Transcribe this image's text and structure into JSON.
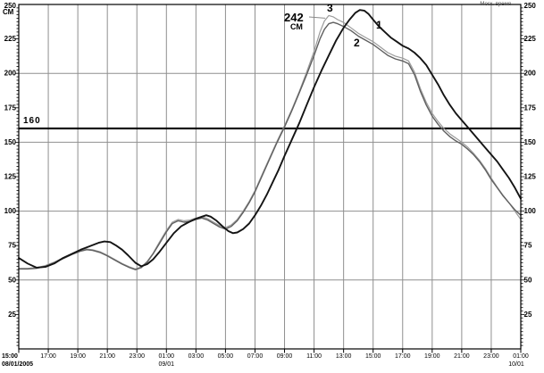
{
  "labels": {
    "units": "СМ",
    "threshold": "160",
    "peak_value": "242",
    "peak_units": "СМ",
    "curve1": "1",
    "curve2": "2",
    "cur3_comment": "curve id labels drawn near each line peak",
    "curve3": "3",
    "time_note": "Моск. время"
  },
  "colors": {
    "grid": "#8f8f8f",
    "axis": "#000000",
    "threshold_line": "#000000",
    "background": "#ffffff"
  },
  "chart_data": {
    "type": "line",
    "title": "",
    "ylabel": "СМ",
    "xlabel": "Моск. время",
    "ylim": [
      0,
      250
    ],
    "y_label_step": 25,
    "y_minor_step": 2.5,
    "y_gridlines": [
      50,
      100,
      150,
      200
    ],
    "threshold_level": 160,
    "grid": true,
    "legend_position": "none",
    "xlim_hours": [
      0,
      34
    ],
    "x_unit": "hours from 15:00 08/01/2005",
    "x_tick_hours": [
      0,
      2,
      4,
      6,
      8,
      10,
      12,
      14,
      16,
      18,
      20,
      22,
      24,
      26,
      28,
      30,
      32,
      34
    ],
    "x_tick_labels": [
      "15:00",
      "17:00",
      "19:00",
      "21:00",
      "23:00",
      "01:00",
      "03:00",
      "05:00",
      "07:00",
      "09:00",
      "11:00",
      "13:00",
      "15:00",
      "17:00",
      "19:00",
      "21:00",
      "23:00",
      "01:00"
    ],
    "date_labels": [
      {
        "hour": 0,
        "text": "08/01/2005",
        "bold": true,
        "anchor": "start"
      },
      {
        "hour": 10,
        "text": "09/01",
        "bold": false,
        "anchor": "middle"
      },
      {
        "hour": 34,
        "text": "10/01",
        "bold": false,
        "anchor": "middle"
      }
    ],
    "peak_annotation": {
      "series": "3",
      "value": 242,
      "units": "СМ",
      "at_hour": 21
    },
    "series": [
      {
        "name": "3",
        "color": "#9b9b9b",
        "width": 1.2,
        "points": [
          [
            0,
            58.5
          ],
          [
            0.6,
            58.5
          ],
          [
            1.2,
            59
          ],
          [
            1.8,
            60.5
          ],
          [
            2.4,
            63
          ],
          [
            3,
            66
          ],
          [
            3.6,
            69
          ],
          [
            4.2,
            71.5
          ],
          [
            4.6,
            72.5
          ],
          [
            5,
            72
          ],
          [
            5.5,
            70.5
          ],
          [
            6,
            68
          ],
          [
            6.5,
            65
          ],
          [
            7,
            62
          ],
          [
            7.5,
            59.5
          ],
          [
            7.9,
            58
          ],
          [
            8.3,
            59.5
          ],
          [
            8.7,
            63.5
          ],
          [
            9.1,
            69.5
          ],
          [
            9.5,
            77
          ],
          [
            10,
            86
          ],
          [
            10.4,
            92
          ],
          [
            10.8,
            94
          ],
          [
            11.2,
            93
          ],
          [
            11.6,
            93.5
          ],
          [
            12,
            95
          ],
          [
            12.4,
            96
          ],
          [
            12.8,
            94.5
          ],
          [
            13.2,
            92
          ],
          [
            13.6,
            89.5
          ],
          [
            14,
            88
          ],
          [
            14.4,
            90
          ],
          [
            14.8,
            94
          ],
          [
            15.2,
            100
          ],
          [
            15.6,
            107
          ],
          [
            16,
            115
          ],
          [
            16.5,
            127
          ],
          [
            17,
            139
          ],
          [
            17.5,
            151
          ],
          [
            18,
            162
          ],
          [
            18.5,
            174
          ],
          [
            19,
            187
          ],
          [
            19.5,
            201
          ],
          [
            20,
            216
          ],
          [
            20.4,
            230
          ],
          [
            20.7,
            238
          ],
          [
            21,
            242
          ],
          [
            21.3,
            241
          ],
          [
            21.6,
            239
          ],
          [
            22,
            237
          ],
          [
            22.5,
            233
          ],
          [
            23,
            229
          ],
          [
            23.5,
            226
          ],
          [
            24,
            223
          ],
          [
            24.5,
            219
          ],
          [
            25,
            215
          ],
          [
            25.5,
            212.5
          ],
          [
            26,
            211
          ],
          [
            26.4,
            209
          ],
          [
            26.8,
            201
          ],
          [
            27.2,
            189
          ],
          [
            27.6,
            179
          ],
          [
            28,
            171
          ],
          [
            28.4,
            165
          ],
          [
            28.8,
            160
          ],
          [
            29.2,
            156
          ],
          [
            29.6,
            153
          ],
          [
            30,
            150
          ],
          [
            30.4,
            146.5
          ],
          [
            30.8,
            142
          ],
          [
            31.2,
            137
          ],
          [
            31.6,
            131
          ],
          [
            32,
            124
          ],
          [
            32.4,
            117.5
          ],
          [
            32.8,
            111.5
          ],
          [
            33.2,
            106
          ],
          [
            33.6,
            100
          ],
          [
            34,
            94
          ]
        ]
      },
      {
        "name": "2",
        "color": "#5f5f5f",
        "width": 1.4,
        "points": [
          [
            0,
            58
          ],
          [
            0.6,
            58
          ],
          [
            1.2,
            58.5
          ],
          [
            1.8,
            60
          ],
          [
            2.4,
            62.5
          ],
          [
            3,
            65.5
          ],
          [
            3.6,
            68.5
          ],
          [
            4.2,
            71
          ],
          [
            4.6,
            72
          ],
          [
            5,
            71.5
          ],
          [
            5.5,
            70
          ],
          [
            6,
            67.5
          ],
          [
            6.5,
            64.5
          ],
          [
            7,
            61.5
          ],
          [
            7.5,
            59
          ],
          [
            7.9,
            57.5
          ],
          [
            8.3,
            59
          ],
          [
            8.7,
            63
          ],
          [
            9.1,
            69
          ],
          [
            9.5,
            76
          ],
          [
            10,
            85
          ],
          [
            10.4,
            91
          ],
          [
            10.8,
            93
          ],
          [
            11.2,
            92
          ],
          [
            11.6,
            92.5
          ],
          [
            12,
            94
          ],
          [
            12.4,
            95
          ],
          [
            12.8,
            93.5
          ],
          [
            13.2,
            91
          ],
          [
            13.6,
            88.5
          ],
          [
            14,
            87
          ],
          [
            14.4,
            89
          ],
          [
            14.8,
            93
          ],
          [
            15.2,
            99
          ],
          [
            15.6,
            106
          ],
          [
            16,
            114
          ],
          [
            16.5,
            126
          ],
          [
            17,
            138
          ],
          [
            17.5,
            150
          ],
          [
            18,
            161
          ],
          [
            18.5,
            173
          ],
          [
            19,
            186
          ],
          [
            19.5,
            199
          ],
          [
            20,
            213
          ],
          [
            20.4,
            225
          ],
          [
            20.7,
            232
          ],
          [
            21,
            236
          ],
          [
            21.3,
            237
          ],
          [
            21.6,
            236
          ],
          [
            22,
            234
          ],
          [
            22.5,
            231
          ],
          [
            23,
            227
          ],
          [
            23.5,
            224
          ],
          [
            24,
            221
          ],
          [
            24.5,
            217
          ],
          [
            25,
            213
          ],
          [
            25.5,
            210.5
          ],
          [
            26,
            209
          ],
          [
            26.4,
            207
          ],
          [
            26.8,
            199
          ],
          [
            27.2,
            187
          ],
          [
            27.6,
            177
          ],
          [
            28,
            169
          ],
          [
            28.4,
            163
          ],
          [
            28.8,
            158
          ],
          [
            29.2,
            154
          ],
          [
            29.6,
            151
          ],
          [
            30,
            148.5
          ],
          [
            30.4,
            145
          ],
          [
            30.8,
            141
          ],
          [
            31.2,
            136
          ],
          [
            31.6,
            130
          ],
          [
            32,
            123
          ],
          [
            32.4,
            117
          ],
          [
            32.8,
            111
          ],
          [
            33.2,
            106
          ],
          [
            33.6,
            101
          ],
          [
            34,
            97
          ]
        ]
      },
      {
        "name": "1",
        "color": "#141414",
        "width": 1.9,
        "points": [
          [
            0,
            66
          ],
          [
            0.6,
            62
          ],
          [
            1.2,
            59
          ],
          [
            1.8,
            59.5
          ],
          [
            2.4,
            62
          ],
          [
            3,
            66
          ],
          [
            3.6,
            69
          ],
          [
            4.2,
            72
          ],
          [
            4.8,
            74.5
          ],
          [
            5.4,
            77
          ],
          [
            5.8,
            78
          ],
          [
            6.2,
            77.5
          ],
          [
            6.6,
            75
          ],
          [
            7,
            72
          ],
          [
            7.4,
            68
          ],
          [
            7.9,
            62.5
          ],
          [
            8.3,
            60
          ],
          [
            8.7,
            61.5
          ],
          [
            9.1,
            65
          ],
          [
            9.5,
            70
          ],
          [
            10,
            77
          ],
          [
            10.5,
            84
          ],
          [
            11,
            89
          ],
          [
            11.5,
            92
          ],
          [
            12,
            94.5
          ],
          [
            12.4,
            96
          ],
          [
            12.7,
            97
          ],
          [
            13,
            96
          ],
          [
            13.4,
            93
          ],
          [
            13.8,
            89
          ],
          [
            14.2,
            85.5
          ],
          [
            14.5,
            84
          ],
          [
            14.8,
            84.5
          ],
          [
            15.2,
            87
          ],
          [
            15.6,
            91
          ],
          [
            16,
            97
          ],
          [
            16.4,
            104
          ],
          [
            16.8,
            112
          ],
          [
            17.2,
            121
          ],
          [
            17.6,
            130
          ],
          [
            18,
            140
          ],
          [
            18.5,
            152
          ],
          [
            19,
            164
          ],
          [
            19.5,
            177
          ],
          [
            20,
            190
          ],
          [
            20.5,
            202
          ],
          [
            21,
            213
          ],
          [
            21.5,
            224
          ],
          [
            22,
            233
          ],
          [
            22.4,
            239
          ],
          [
            22.8,
            244
          ],
          [
            23.1,
            246
          ],
          [
            23.4,
            245.5
          ],
          [
            23.7,
            243
          ],
          [
            24,
            239
          ],
          [
            24.4,
            234
          ],
          [
            24.8,
            230
          ],
          [
            25.2,
            226
          ],
          [
            25.6,
            223
          ],
          [
            26,
            220
          ],
          [
            26.4,
            218
          ],
          [
            26.8,
            215
          ],
          [
            27.2,
            211
          ],
          [
            27.6,
            206
          ],
          [
            28,
            199
          ],
          [
            28.4,
            192
          ],
          [
            28.8,
            184
          ],
          [
            29.2,
            177
          ],
          [
            29.6,
            171
          ],
          [
            30,
            166
          ],
          [
            30.4,
            161
          ],
          [
            30.8,
            156
          ],
          [
            31.2,
            151
          ],
          [
            31.6,
            146
          ],
          [
            32,
            141
          ],
          [
            32.4,
            136
          ],
          [
            32.8,
            130
          ],
          [
            33.2,
            124
          ],
          [
            33.6,
            117
          ],
          [
            34,
            109
          ]
        ]
      }
    ]
  }
}
